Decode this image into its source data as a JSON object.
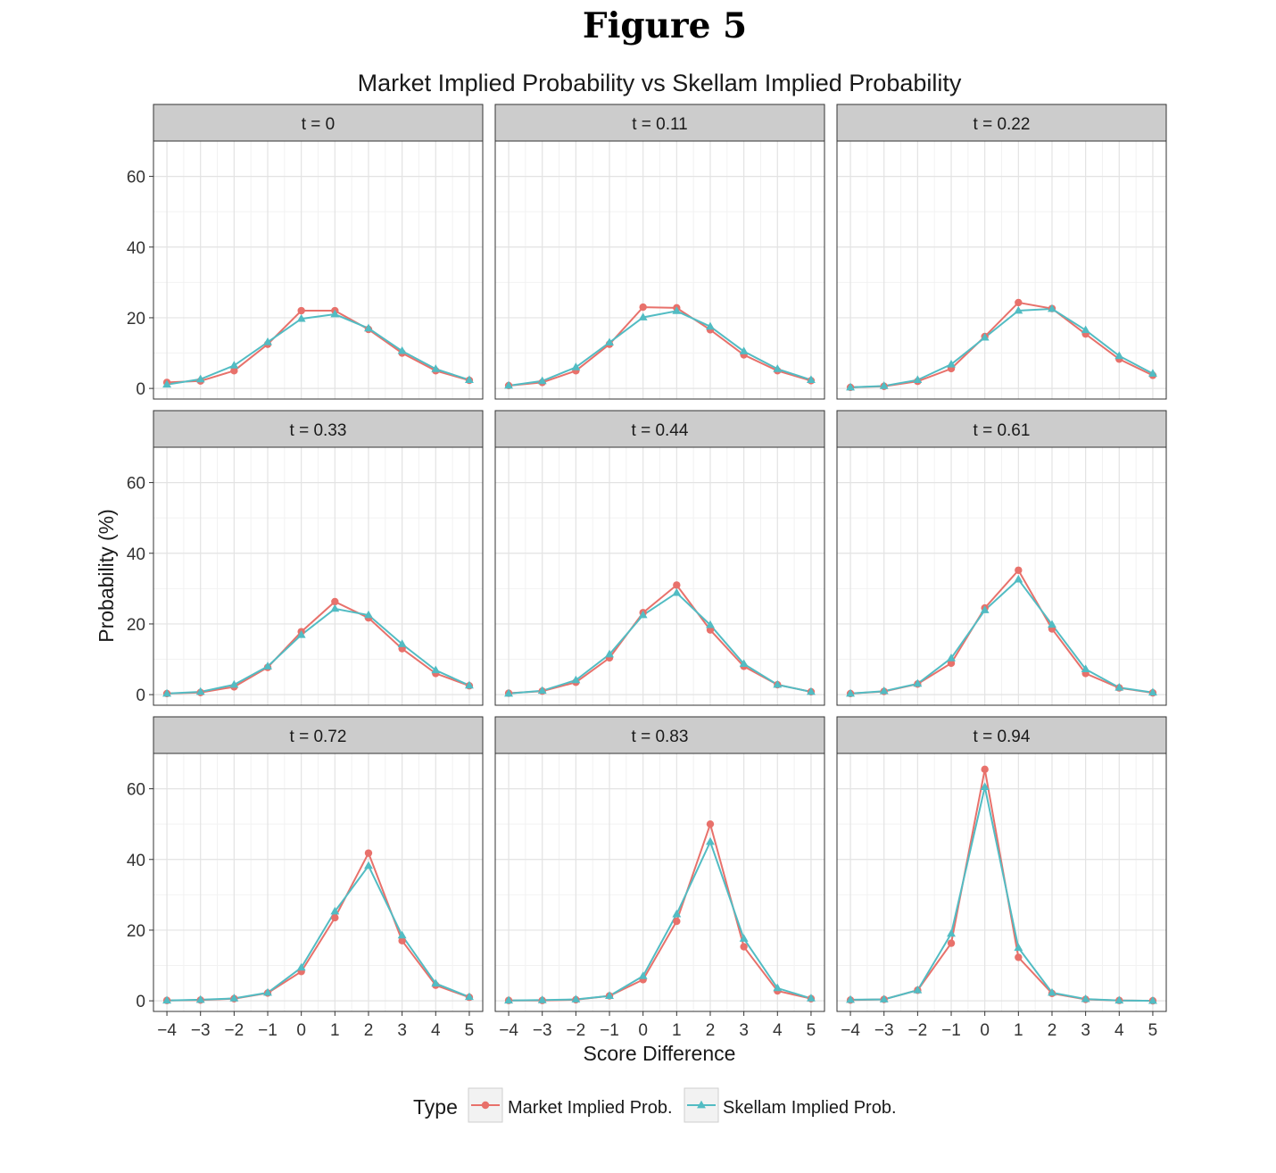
{
  "figure_heading": "Figure 5",
  "chart_data": {
    "type": "line",
    "title": "Market Implied Probability vs Skellam Implied Probability",
    "xlabel": "Score Difference",
    "ylabel": "Probability (%)",
    "x": [
      -4,
      -3,
      -2,
      -1,
      0,
      1,
      2,
      3,
      4,
      5
    ],
    "x_tick_labels": [
      "−4",
      "−3",
      "−2",
      "−1",
      "0",
      "1",
      "2",
      "3",
      "4",
      "5"
    ],
    "xlim": [
      -4.4,
      5.4
    ],
    "ylim": [
      -3,
      70
    ],
    "y_ticks": [
      0,
      20,
      40,
      60
    ],
    "grid": true,
    "legend": {
      "title": "Type",
      "position": "bottom",
      "entries": [
        "Market Implied Prob.",
        "Skellam Implied Prob."
      ]
    },
    "series_colors": {
      "market": "#E8716B",
      "skellam": "#52BCC3"
    },
    "panels": [
      {
        "label": "t = 0",
        "market": [
          1.7,
          2.1,
          5.0,
          12.5,
          22.0,
          22.0,
          16.7,
          10.0,
          5.0,
          2.3
        ],
        "skellam": [
          1.1,
          2.6,
          6.5,
          13.1,
          19.7,
          21.0,
          17.0,
          10.6,
          5.5,
          2.4
        ]
      },
      {
        "label": "t = 0.11",
        "market": [
          0.8,
          1.7,
          5.0,
          12.5,
          23.0,
          22.8,
          16.6,
          9.5,
          5.0,
          2.2
        ],
        "skellam": [
          0.8,
          2.1,
          6.0,
          13.0,
          20.1,
          21.9,
          17.5,
          10.5,
          5.5,
          2.4
        ]
      },
      {
        "label": "t = 0.22",
        "market": [
          0.3,
          0.6,
          2.0,
          5.6,
          14.7,
          24.3,
          22.6,
          15.4,
          8.3,
          3.7
        ],
        "skellam": [
          0.3,
          0.7,
          2.4,
          6.8,
          14.4,
          22.0,
          22.5,
          16.5,
          9.2,
          4.2
        ]
      },
      {
        "label": "t = 0.33",
        "market": [
          0.3,
          0.6,
          2.2,
          7.7,
          17.8,
          26.3,
          21.7,
          13.0,
          6.0,
          2.5
        ],
        "skellam": [
          0.3,
          0.8,
          2.8,
          8.0,
          16.9,
          24.3,
          22.5,
          14.3,
          6.9,
          2.6
        ]
      },
      {
        "label": "t = 0.44",
        "market": [
          0.4,
          1.0,
          3.5,
          10.4,
          23.2,
          31.0,
          18.3,
          8.0,
          2.8,
          0.8
        ],
        "skellam": [
          0.3,
          1.1,
          4.1,
          11.4,
          22.5,
          28.8,
          19.7,
          8.7,
          2.8,
          0.8
        ]
      },
      {
        "label": "t = 0.61",
        "market": [
          0.3,
          0.9,
          3.0,
          8.9,
          24.5,
          35.2,
          18.6,
          6.0,
          1.9,
          0.5
        ],
        "skellam": [
          0.3,
          1.0,
          3.1,
          10.3,
          23.9,
          32.6,
          19.8,
          7.2,
          2.0,
          0.6
        ]
      },
      {
        "label": "t = 0.72",
        "market": [
          0.1,
          0.2,
          0.6,
          2.2,
          8.3,
          23.5,
          41.8,
          17.0,
          4.4,
          1.0
        ],
        "skellam": [
          0.1,
          0.3,
          0.7,
          2.3,
          9.4,
          25.3,
          38.2,
          18.5,
          4.9,
          1.1
        ]
      },
      {
        "label": "t = 0.83",
        "market": [
          0.1,
          0.1,
          0.3,
          1.4,
          6.0,
          22.5,
          50.0,
          15.3,
          2.8,
          0.6
        ],
        "skellam": [
          0.1,
          0.2,
          0.4,
          1.4,
          7.0,
          24.5,
          45.0,
          17.6,
          3.6,
          0.7
        ]
      },
      {
        "label": "t = 0.94",
        "market": [
          0.2,
          0.4,
          3.0,
          16.3,
          65.5,
          12.3,
          2.1,
          0.4,
          0.1,
          0.0
        ],
        "skellam": [
          0.3,
          0.4,
          3.0,
          19.0,
          60.5,
          15.0,
          2.3,
          0.5,
          0.1,
          0.0
        ]
      }
    ]
  }
}
